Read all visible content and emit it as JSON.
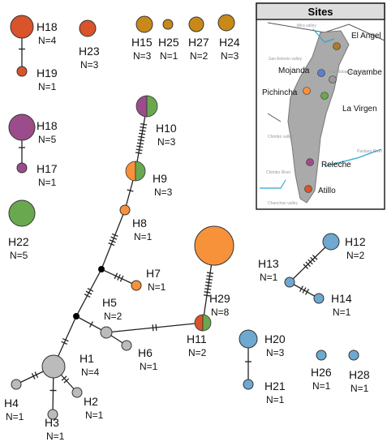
{
  "nodes": [
    {
      "label": "H18",
      "count": "N=4"
    },
    {
      "label": "H19",
      "count": "N=1"
    },
    {
      "label": "H23",
      "count": "N=3"
    },
    {
      "label": "H15",
      "count": "N=3"
    },
    {
      "label": "H25",
      "count": "N=1"
    },
    {
      "label": "H27",
      "count": "N=2"
    },
    {
      "label": "H24",
      "count": "N=3"
    },
    {
      "label": "H18",
      "count": "N=5"
    },
    {
      "label": "H17",
      "count": "N=1"
    },
    {
      "label": "H22",
      "count": "N=5"
    },
    {
      "label": "H10",
      "count": "N=3"
    },
    {
      "label": "H9",
      "count": "N=3"
    },
    {
      "label": "H8",
      "count": "N=1"
    },
    {
      "label": "H7",
      "count": "N=1"
    },
    {
      "label": "H5",
      "count": "N=2"
    },
    {
      "label": "H6",
      "count": "N=1"
    },
    {
      "label": "H11",
      "count": "N=2"
    },
    {
      "label": "H29",
      "count": "N=8"
    },
    {
      "label": "H1",
      "count": "N=4"
    },
    {
      "label": "H4",
      "count": "N=1"
    },
    {
      "label": "H3",
      "count": "N=1"
    },
    {
      "label": "H2",
      "count": "N=1"
    },
    {
      "label": "H12",
      "count": "N=2"
    },
    {
      "label": "H13",
      "count": "N=1"
    },
    {
      "label": "H14",
      "count": "N=1"
    },
    {
      "label": "H20",
      "count": "N=3"
    },
    {
      "label": "H21",
      "count": "N=1"
    },
    {
      "label": "H26",
      "count": "N=1"
    },
    {
      "label": "H28",
      "count": "N=1"
    }
  ],
  "map": {
    "title": "Sites",
    "sites": [
      "El Angel",
      "Cayambe",
      "Mojanda",
      "Pichincha",
      "La Virgen",
      "Releche",
      "Atillo"
    ],
    "features": [
      "Mira valley",
      "San Antonio valley",
      "Guayllabamba valley",
      "Chimbo valley",
      "Chimbo River",
      "Pastaza River",
      "Chanchan valley"
    ]
  }
}
